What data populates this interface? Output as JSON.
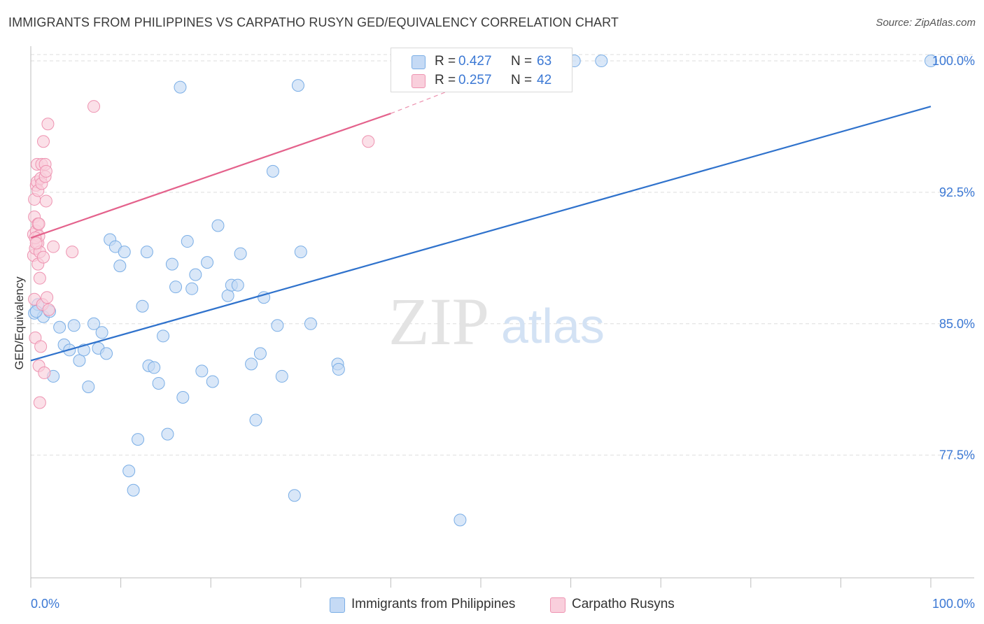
{
  "title": "IMMIGRANTS FROM PHILIPPINES VS CARPATHO RUSYN GED/EQUIVALENCY CORRELATION CHART",
  "source": "Source: ZipAtlas.com",
  "watermark": {
    "zip": "ZIP",
    "atlas": "atlas"
  },
  "legend_top": {
    "rows": [
      {
        "r_label": "R = ",
        "r_value": "0.427",
        "n_label": "N = ",
        "n_value": "63"
      },
      {
        "r_label": "R = ",
        "r_value": "0.257",
        "n_label": "N = ",
        "n_value": "42"
      }
    ]
  },
  "colors": {
    "blue_fill": "#c5daf5",
    "blue_stroke": "#7aaee6",
    "blue_line": "#2f72cc",
    "pink_fill": "#f9cfdc",
    "pink_stroke": "#ee93b1",
    "pink_line": "#e4628c",
    "tick_label": "#3b78d4",
    "grid": "#dedede"
  },
  "chart_data": {
    "type": "scatter",
    "title": "IMMIGRANTS FROM PHILIPPINES VS CARPATHO RUSYN GED/EQUIVALENCY CORRELATION CHART",
    "xlabel": "",
    "ylabel": "GED/Equivalency",
    "xlim": [
      0,
      100
    ],
    "ylim": [
      70.5,
      101.0
    ],
    "x_tick_labels": [
      "0.0%",
      "100.0%"
    ],
    "y_ticks": [
      77.5,
      85.0,
      92.5,
      100.0
    ],
    "y_tick_labels": [
      "77.5%",
      "85.0%",
      "92.5%",
      "100.0%"
    ],
    "grid": true,
    "legend_placement": "bottom-center",
    "series": [
      {
        "name": "Immigrants from Philippines",
        "color": "blue",
        "trend": {
          "x": [
            0,
            100
          ],
          "y": [
            82.9,
            97.4
          ],
          "dashed_from": null
        },
        "points": [
          [
            0.4,
            85.6
          ],
          [
            0.8,
            86.1
          ],
          [
            1.4,
            85.4
          ],
          [
            2.1,
            85.7
          ],
          [
            2.5,
            82.0
          ],
          [
            3.2,
            84.8
          ],
          [
            3.7,
            83.8
          ],
          [
            4.3,
            83.5
          ],
          [
            4.8,
            84.9
          ],
          [
            5.4,
            82.9
          ],
          [
            5.9,
            83.5
          ],
          [
            6.4,
            81.4
          ],
          [
            7.0,
            85.0
          ],
          [
            7.5,
            83.6
          ],
          [
            7.9,
            84.5
          ],
          [
            8.4,
            83.3
          ],
          [
            8.8,
            89.8
          ],
          [
            9.4,
            89.4
          ],
          [
            9.9,
            88.3
          ],
          [
            10.4,
            89.1
          ],
          [
            10.9,
            76.6
          ],
          [
            11.4,
            75.5
          ],
          [
            11.9,
            78.4
          ],
          [
            12.4,
            86.0
          ],
          [
            12.9,
            89.1
          ],
          [
            13.1,
            82.6
          ],
          [
            13.7,
            82.5
          ],
          [
            14.2,
            81.6
          ],
          [
            14.7,
            84.3
          ],
          [
            15.2,
            78.7
          ],
          [
            15.7,
            88.4
          ],
          [
            16.1,
            87.1
          ],
          [
            16.6,
            98.5
          ],
          [
            16.9,
            80.8
          ],
          [
            17.4,
            89.7
          ],
          [
            17.9,
            87.0
          ],
          [
            18.3,
            87.8
          ],
          [
            19.0,
            82.3
          ],
          [
            19.6,
            88.5
          ],
          [
            20.2,
            81.7
          ],
          [
            20.8,
            90.6
          ],
          [
            21.9,
            86.6
          ],
          [
            22.3,
            87.2
          ],
          [
            23.0,
            87.2
          ],
          [
            23.3,
            89.0
          ],
          [
            24.5,
            82.7
          ],
          [
            25.0,
            79.5
          ],
          [
            25.5,
            83.3
          ],
          [
            25.9,
            86.5
          ],
          [
            26.9,
            93.7
          ],
          [
            27.4,
            84.9
          ],
          [
            27.9,
            82.0
          ],
          [
            29.3,
            75.2
          ],
          [
            29.7,
            98.6
          ],
          [
            30.0,
            89.1
          ],
          [
            31.1,
            85.0
          ],
          [
            34.1,
            82.7
          ],
          [
            34.2,
            82.4
          ],
          [
            47.7,
            73.8
          ],
          [
            60.4,
            100.0
          ],
          [
            63.4,
            100.0
          ],
          [
            100.0,
            100.0
          ],
          [
            0.6,
            85.7
          ]
        ]
      },
      {
        "name": "Carpatho Rusyns",
        "color": "pink",
        "trend": {
          "x": [
            0,
            40
          ],
          "y": [
            89.9,
            97.0
          ],
          "dashed_to": [
            47,
            98.4
          ]
        },
        "points": [
          [
            0.3,
            88.9
          ],
          [
            0.3,
            90.1
          ],
          [
            0.4,
            91.1
          ],
          [
            0.4,
            92.1
          ],
          [
            0.4,
            86.4
          ],
          [
            0.5,
            84.2
          ],
          [
            0.5,
            89.3
          ],
          [
            0.6,
            90.3
          ],
          [
            0.6,
            92.9
          ],
          [
            0.7,
            93.1
          ],
          [
            0.7,
            94.1
          ],
          [
            0.8,
            88.4
          ],
          [
            0.8,
            89.6
          ],
          [
            0.8,
            90.7
          ],
          [
            0.8,
            92.6
          ],
          [
            0.9,
            90.0
          ],
          [
            0.9,
            82.6
          ],
          [
            1.0,
            89.1
          ],
          [
            1.0,
            80.5
          ],
          [
            1.0,
            87.6
          ],
          [
            1.1,
            93.3
          ],
          [
            1.1,
            83.7
          ],
          [
            1.2,
            93.0
          ],
          [
            1.2,
            94.1
          ],
          [
            1.3,
            86.1
          ],
          [
            1.4,
            95.4
          ],
          [
            1.4,
            88.8
          ],
          [
            1.5,
            82.2
          ],
          [
            1.6,
            93.4
          ],
          [
            1.6,
            94.1
          ],
          [
            1.7,
            93.7
          ],
          [
            1.7,
            92.0
          ],
          [
            1.8,
            86.5
          ],
          [
            1.9,
            96.4
          ],
          [
            2.0,
            85.8
          ],
          [
            2.5,
            89.4
          ],
          [
            4.6,
            89.1
          ],
          [
            7.0,
            97.4
          ],
          [
            37.5,
            95.4
          ],
          [
            0.5,
            89.9
          ],
          [
            0.6,
            89.6
          ],
          [
            0.9,
            90.7
          ]
        ]
      }
    ]
  },
  "legend_bottom": {
    "items": [
      {
        "label": "Immigrants from Philippines"
      },
      {
        "label": "Carpatho Rusyns"
      }
    ]
  }
}
